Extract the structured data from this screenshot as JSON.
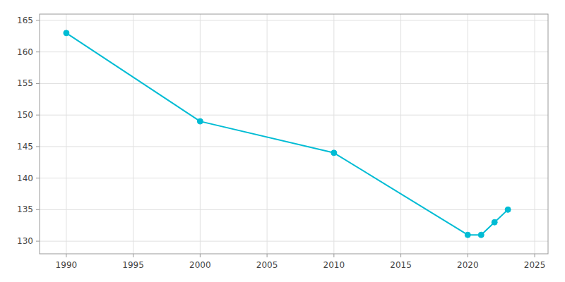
{
  "chart_data": {
    "type": "line",
    "x": [
      1990,
      2000,
      2010,
      2020,
      2021,
      2022,
      2023
    ],
    "values": [
      163,
      149,
      144,
      131,
      131,
      133,
      135
    ],
    "color": "#00BCD4",
    "marker": "circle",
    "xlim": [
      1988,
      2026
    ],
    "xticks": [
      1990,
      1995,
      2000,
      2005,
      2010,
      2015,
      2020,
      2025
    ],
    "ylim": [
      128,
      166
    ],
    "yticks": [
      130,
      135,
      140,
      145,
      150,
      155,
      160,
      165
    ],
    "grid": true
  }
}
